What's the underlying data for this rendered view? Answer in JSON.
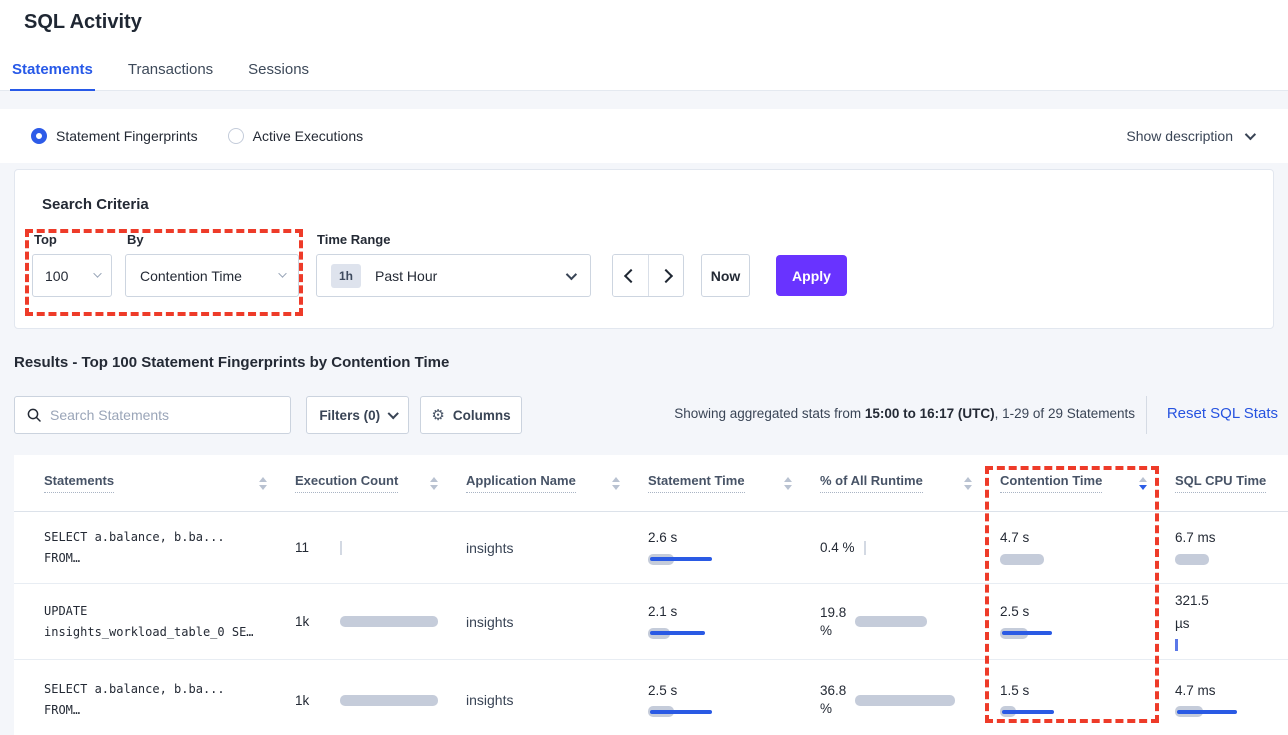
{
  "page": {
    "title": "SQL Activity"
  },
  "tabs": [
    {
      "label": "Statements",
      "active": true
    },
    {
      "label": "Transactions",
      "active": false
    },
    {
      "label": "Sessions",
      "active": false
    }
  ],
  "view_toggle": {
    "options": [
      {
        "label": "Statement Fingerprints",
        "selected": true
      },
      {
        "label": "Active Executions",
        "selected": false
      }
    ],
    "show_description_label": "Show description"
  },
  "search_criteria": {
    "heading": "Search Criteria",
    "top": {
      "label": "Top",
      "value": "100"
    },
    "by": {
      "label": "By",
      "value": "Contention Time"
    },
    "time_range": {
      "label": "Time Range",
      "badge": "1h",
      "value": "Past Hour"
    },
    "now_label": "Now",
    "apply_label": "Apply"
  },
  "results": {
    "heading": "Results - Top 100 Statement Fingerprints by Contention Time",
    "search_placeholder": "Search Statements",
    "search_value": "",
    "filters_label": "Filters (0)",
    "columns_label": "Columns",
    "gear_glyph": "⚙",
    "stats_prefix": "Showing aggregated stats from ",
    "stats_bold": "15:00 to 16:17 (UTC)",
    "stats_suffix": ", 1-29 of 29 Statements",
    "reset_label": "Reset SQL Stats"
  },
  "table": {
    "headers": [
      {
        "label": "Statements",
        "sort_desc": false
      },
      {
        "label": "Execution Count",
        "sort_desc": false
      },
      {
        "label": "Application Name",
        "sort_desc": false
      },
      {
        "label": "Statement Time",
        "sort_desc": false
      },
      {
        "label": "% of All Runtime",
        "sort_desc": false
      },
      {
        "label": "Contention Time",
        "sort_desc": true
      },
      {
        "label": "SQL CPU Time",
        "sort_desc": false
      }
    ],
    "rows": [
      {
        "statement_line1": "SELECT a.balance, b.ba...",
        "statement_line2": "FROM…",
        "execution_count": "11",
        "application": "insights",
        "statement_time": "2.6 s",
        "runtime_line1": "0.4 %",
        "runtime_line2": "",
        "contention_time": "4.7 s",
        "cpu_line1": "6.7 ms",
        "cpu_line2": "",
        "bars": {
          "exec": {
            "tick": "gray"
          },
          "stmt": {
            "gray": 26,
            "blue": 62
          },
          "runtime": {
            "tick": "gray"
          },
          "contention": {
            "gray": 44
          },
          "cpu": {
            "gray": 34
          }
        }
      },
      {
        "statement_line1": "UPDATE",
        "statement_line2": "insights_workload_table_0 SE…",
        "execution_count": "1k",
        "application": "insights",
        "statement_time": "2.1 s",
        "runtime_line1": "19.8",
        "runtime_line2": "%",
        "contention_time": "2.5 s",
        "cpu_line1": "321.5",
        "cpu_line2": "µs",
        "bars": {
          "exec": {
            "gray": 98
          },
          "stmt": {
            "gray": 22,
            "blue": 55
          },
          "runtime": {
            "gray": 72
          },
          "contention": {
            "gray": 28,
            "blue": 50
          },
          "cpu": {
            "tick": "blue"
          }
        }
      },
      {
        "statement_line1": "SELECT a.balance, b.ba...",
        "statement_line2": "FROM…",
        "execution_count": "1k",
        "application": "insights",
        "statement_time": "2.5 s",
        "runtime_line1": "36.8",
        "runtime_line2": "%",
        "contention_time": "1.5 s",
        "cpu_line1": "4.7 ms",
        "cpu_line2": "",
        "bars": {
          "exec": {
            "gray": 98
          },
          "stmt": {
            "gray": 26,
            "blue": 62
          },
          "runtime": {
            "gray": 100
          },
          "contention": {
            "gray": 16,
            "blue": 52
          },
          "cpu": {
            "gray": 28,
            "blue": 60
          }
        }
      }
    ]
  },
  "colors": {
    "accent_blue": "#2759E8",
    "apply_purple": "#6933FF",
    "annotation_red": "#EE3B29",
    "bar_gray": "#C5CCDA",
    "bar_blue": "#2A5AE4",
    "page_bg": "#F4F6FA"
  }
}
